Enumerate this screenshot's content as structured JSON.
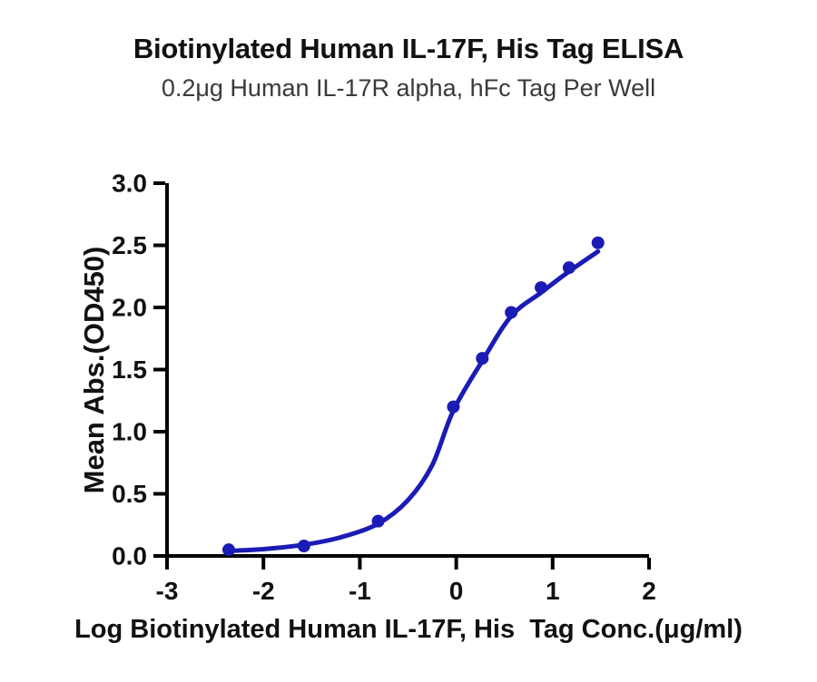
{
  "header": {
    "title": "Biotinylated Human IL-17F, His Tag ELISA",
    "subtitle": "0.2μg Human IL-17R alpha, hFc Tag Per Well"
  },
  "chart_data": {
    "type": "scatter",
    "title": "Biotinylated Human IL-17F, His Tag ELISA",
    "subtitle": "0.2μg Human IL-17R alpha, hFc Tag Per Well",
    "xlabel": "Log Biotinylated Human IL-17F, His  Tag Conc.(μg/ml)",
    "ylabel": "Mean Abs.(OD450)",
    "xlim": [
      -3,
      2
    ],
    "ylim": [
      0,
      3
    ],
    "grid": false,
    "legend": "none",
    "xticks": {
      "values": [
        -3,
        -2,
        -1,
        0,
        1,
        2
      ],
      "labels": [
        "-3",
        "-2",
        "-1",
        "0",
        "1",
        "2"
      ]
    },
    "yticks": {
      "values": [
        0,
        0.5,
        1,
        1.5,
        2,
        2.5,
        3
      ],
      "labels": [
        "0.0",
        "0.5",
        "1.0",
        "1.5",
        "2.0",
        "2.5",
        "3.0"
      ]
    },
    "series": [
      {
        "name": "Mean Abs.(OD450)",
        "x": [
          -2.36,
          -1.58,
          -0.81,
          -0.03,
          0.27,
          0.57,
          0.88,
          1.17,
          1.47
        ],
        "y": [
          0.05,
          0.08,
          0.28,
          1.2,
          1.59,
          1.96,
          2.16,
          2.32,
          2.52
        ]
      }
    ],
    "fit_curve": {
      "x": [
        -2.37,
        -2.0,
        -1.58,
        -1.2,
        -0.81,
        -0.5,
        -0.25,
        -0.03,
        0.27,
        0.57,
        0.88,
        1.17,
        1.47
      ],
      "y": [
        0.04,
        0.055,
        0.09,
        0.15,
        0.26,
        0.45,
        0.73,
        1.17,
        1.57,
        1.93,
        2.12,
        2.29,
        2.45
      ]
    },
    "colors": {
      "curve": "#1b1bb5",
      "marker": "#1b1bb5",
      "axis": "#000000",
      "title": "#111111",
      "subtitle": "#3a3a3a"
    },
    "marker_radius": 7,
    "curve_width": 5
  }
}
